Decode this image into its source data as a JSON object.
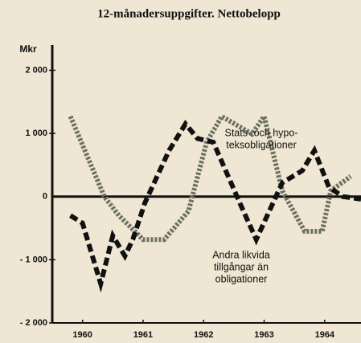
{
  "chart_data": {
    "type": "line",
    "title": "12-månadersuppgifter. Nettobelopp",
    "y_axis_label": "Mkr",
    "xlim": [
      1960,
      1965.1
    ],
    "xticks": [
      {
        "value": 1960.5,
        "label": "1960"
      },
      {
        "value": 1961.5,
        "label": "1961"
      },
      {
        "value": 1962.5,
        "label": "1962"
      },
      {
        "value": 1963.5,
        "label": "1963"
      },
      {
        "value": 1964.5,
        "label": "1964"
      }
    ],
    "ylim": [
      -2000,
      2400
    ],
    "yticks": [
      {
        "value": 2000,
        "label": "2 000"
      },
      {
        "value": 1000,
        "label": "1 000"
      },
      0,
      {
        "value": -1000,
        "label": "- 1 000"
      },
      {
        "value": -2000,
        "label": "- 2 000"
      }
    ],
    "series": [
      {
        "name": [
          "Stats- och hypo-",
          "teksobligationer"
        ],
        "color": "#6b7060",
        "x": [
          1960.3,
          1960.86,
          1961.1,
          1961.5,
          1961.85,
          1962.25,
          1962.55,
          1962.8,
          1963.3,
          1963.5,
          1963.8,
          1964.17,
          1964.46,
          1964.6,
          1964.93
        ],
        "values": [
          1270,
          0,
          -300,
          -680,
          -680,
          -230,
          860,
          1270,
          990,
          1270,
          90,
          -550,
          -550,
          90,
          320
        ]
      },
      {
        "name": [
          "Andra likvida",
          "tillgångar än",
          "obligationer"
        ],
        "color": "#111111",
        "x": [
          1960.3,
          1960.5,
          1960.8,
          1961.0,
          1961.2,
          1961.33,
          1961.53,
          1961.93,
          1962.2,
          1962.4,
          1962.66,
          1963.13,
          1963.37,
          1963.8,
          1964.13,
          1964.33,
          1964.57,
          1964.8,
          1965.1
        ],
        "values": [
          -300,
          -420,
          -1380,
          -620,
          -940,
          -680,
          -100,
          730,
          1150,
          920,
          860,
          -170,
          -680,
          220,
          410,
          730,
          150,
          0,
          -40
        ]
      }
    ]
  }
}
